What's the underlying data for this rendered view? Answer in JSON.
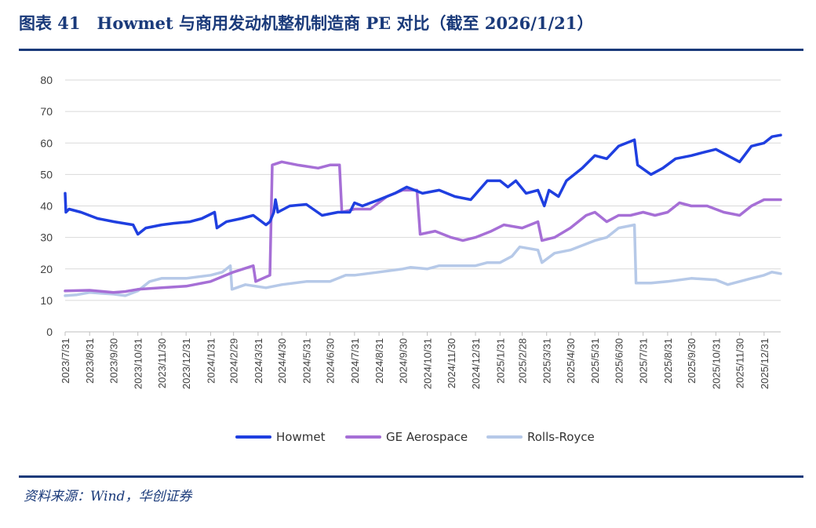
{
  "title": "图表 41　Howmet 与商用发动机整机制造商 PE 对比（截至 2026/1/21）",
  "source": "资料来源：Wind，华创证券",
  "colors": {
    "howmet": "#1f3fe0",
    "ge": "#a66fd6",
    "rr": "#b6c9e8",
    "title": "#1a3a7a"
  },
  "chart_data": {
    "type": "line",
    "title": "",
    "xlabel": "",
    "ylabel": "",
    "ylim": [
      0,
      80
    ],
    "yticks": [
      0,
      10,
      20,
      30,
      40,
      50,
      60,
      70,
      80
    ],
    "x_range": [
      "2023-07-31",
      "2026-01-21"
    ],
    "x_tick_labels": [
      "2023/7/31",
      "2023/8/31",
      "2023/9/30",
      "2023/10/31",
      "2023/11/30",
      "2023/12/31",
      "2024/1/31",
      "2024/2/29",
      "2024/3/31",
      "2024/4/30",
      "2024/5/31",
      "2024/6/30",
      "2024/7/31",
      "2024/8/31",
      "2024/9/30",
      "2024/10/31",
      "2024/11/30",
      "2024/12/31",
      "2025/1/31",
      "2025/2/28",
      "2025/3/31",
      "2025/4/30",
      "2025/5/31",
      "2025/6/30",
      "2025/7/31",
      "2025/8/31",
      "2025/9/30",
      "2025/10/31",
      "2025/11/30",
      "2025/12/31"
    ],
    "grid": true,
    "legend_position": "bottom",
    "series": [
      {
        "name": "Howmet",
        "color": "#1f3fe0",
        "points": [
          [
            "2023-07-31",
            44
          ],
          [
            "2023-08-01",
            38
          ],
          [
            "2023-08-05",
            39
          ],
          [
            "2023-08-20",
            38
          ],
          [
            "2023-09-10",
            36
          ],
          [
            "2023-10-01",
            35
          ],
          [
            "2023-10-25",
            34
          ],
          [
            "2023-10-31",
            31
          ],
          [
            "2023-11-10",
            33
          ],
          [
            "2023-11-30",
            34
          ],
          [
            "2023-12-15",
            34.5
          ],
          [
            "2024-01-05",
            35
          ],
          [
            "2024-01-20",
            36
          ],
          [
            "2024-02-05",
            38
          ],
          [
            "2024-02-08",
            33
          ],
          [
            "2024-02-20",
            35
          ],
          [
            "2024-03-10",
            36
          ],
          [
            "2024-03-25",
            37
          ],
          [
            "2024-04-10",
            34
          ],
          [
            "2024-04-15",
            35
          ],
          [
            "2024-04-20",
            38
          ],
          [
            "2024-04-22",
            42
          ],
          [
            "2024-04-25",
            38
          ],
          [
            "2024-05-10",
            40
          ],
          [
            "2024-05-31",
            40.5
          ],
          [
            "2024-06-20",
            37
          ],
          [
            "2024-07-10",
            38
          ],
          [
            "2024-07-25",
            38
          ],
          [
            "2024-07-31",
            41
          ],
          [
            "2024-08-10",
            40
          ],
          [
            "2024-08-31",
            42
          ],
          [
            "2024-09-20",
            44
          ],
          [
            "2024-10-05",
            46
          ],
          [
            "2024-10-25",
            44
          ],
          [
            "2024-11-15",
            45
          ],
          [
            "2024-12-05",
            43
          ],
          [
            "2024-12-25",
            42
          ],
          [
            "2025-01-15",
            48
          ],
          [
            "2025-01-31",
            48
          ],
          [
            "2025-02-10",
            46
          ],
          [
            "2025-02-20",
            48
          ],
          [
            "2025-03-05",
            44
          ],
          [
            "2025-03-20",
            45
          ],
          [
            "2025-03-28",
            40
          ],
          [
            "2025-04-03",
            45
          ],
          [
            "2025-04-15",
            43
          ],
          [
            "2025-04-25",
            48
          ],
          [
            "2025-05-15",
            52
          ],
          [
            "2025-05-31",
            56
          ],
          [
            "2025-06-15",
            55
          ],
          [
            "2025-06-30",
            59
          ],
          [
            "2025-07-10",
            60
          ],
          [
            "2025-07-20",
            61
          ],
          [
            "2025-07-24",
            53
          ],
          [
            "2025-08-10",
            50
          ],
          [
            "2025-08-25",
            52
          ],
          [
            "2025-09-10",
            55
          ],
          [
            "2025-09-30",
            56
          ],
          [
            "2025-10-15",
            57
          ],
          [
            "2025-10-31",
            58
          ],
          [
            "2025-11-15",
            56
          ],
          [
            "2025-11-30",
            54
          ],
          [
            "2025-12-15",
            59
          ],
          [
            "2025-12-31",
            60
          ],
          [
            "2026-01-10",
            62
          ],
          [
            "2026-01-21",
            62.5
          ]
        ]
      },
      {
        "name": "GE Aerospace",
        "color": "#a66fd6",
        "points": [
          [
            "2023-07-31",
            13
          ],
          [
            "2023-08-31",
            13.2
          ],
          [
            "2023-09-30",
            12.5
          ],
          [
            "2023-10-15",
            12.8
          ],
          [
            "2023-10-31",
            13.5
          ],
          [
            "2023-11-30",
            14
          ],
          [
            "2023-12-31",
            14.5
          ],
          [
            "2024-01-31",
            16
          ],
          [
            "2024-02-29",
            19
          ],
          [
            "2024-03-25",
            21
          ],
          [
            "2024-03-28",
            16
          ],
          [
            "2024-04-15",
            18
          ],
          [
            "2024-04-18",
            53
          ],
          [
            "2024-04-30",
            54
          ],
          [
            "2024-05-20",
            53
          ],
          [
            "2024-06-15",
            52
          ],
          [
            "2024-06-30",
            53
          ],
          [
            "2024-07-12",
            53
          ],
          [
            "2024-07-15",
            38
          ],
          [
            "2024-07-31",
            39
          ],
          [
            "2024-08-20",
            39
          ],
          [
            "2024-09-10",
            43
          ],
          [
            "2024-09-30",
            45
          ],
          [
            "2024-10-18",
            45
          ],
          [
            "2024-10-22",
            31
          ],
          [
            "2024-11-10",
            32
          ],
          [
            "2024-11-30",
            30
          ],
          [
            "2024-12-15",
            29
          ],
          [
            "2024-12-31",
            30
          ],
          [
            "2025-01-20",
            32
          ],
          [
            "2025-02-05",
            34
          ],
          [
            "2025-02-28",
            33
          ],
          [
            "2025-03-20",
            35
          ],
          [
            "2025-03-25",
            29
          ],
          [
            "2025-04-10",
            30
          ],
          [
            "2025-04-30",
            33
          ],
          [
            "2025-05-20",
            37
          ],
          [
            "2025-05-31",
            38
          ],
          [
            "2025-06-15",
            35
          ],
          [
            "2025-06-30",
            37
          ],
          [
            "2025-07-15",
            37
          ],
          [
            "2025-07-31",
            38
          ],
          [
            "2025-08-15",
            37
          ],
          [
            "2025-08-31",
            38
          ],
          [
            "2025-09-15",
            41
          ],
          [
            "2025-09-30",
            40
          ],
          [
            "2025-10-20",
            40
          ],
          [
            "2025-11-10",
            38
          ],
          [
            "2025-11-30",
            37
          ],
          [
            "2025-12-15",
            40
          ],
          [
            "2025-12-31",
            42
          ],
          [
            "2026-01-21",
            42
          ]
        ]
      },
      {
        "name": "Rolls-Royce",
        "color": "#b6c9e8",
        "points": [
          [
            "2023-07-31",
            11.5
          ],
          [
            "2023-08-15",
            11.8
          ],
          [
            "2023-08-31",
            12.5
          ],
          [
            "2023-09-30",
            12
          ],
          [
            "2023-10-15",
            11.5
          ],
          [
            "2023-10-31",
            13
          ],
          [
            "2023-11-15",
            16
          ],
          [
            "2023-11-30",
            17
          ],
          [
            "2023-12-31",
            17
          ],
          [
            "2024-01-31",
            18
          ],
          [
            "2024-02-15",
            19
          ],
          [
            "2024-02-25",
            21
          ],
          [
            "2024-02-27",
            13.5
          ],
          [
            "2024-03-15",
            15
          ],
          [
            "2024-04-10",
            14
          ],
          [
            "2024-04-30",
            15
          ],
          [
            "2024-05-31",
            16
          ],
          [
            "2024-06-30",
            16
          ],
          [
            "2024-07-20",
            18
          ],
          [
            "2024-07-31",
            18
          ],
          [
            "2024-08-31",
            19
          ],
          [
            "2024-09-30",
            20
          ],
          [
            "2024-10-10",
            20.5
          ],
          [
            "2024-10-31",
            20
          ],
          [
            "2024-11-15",
            21
          ],
          [
            "2024-11-30",
            21
          ],
          [
            "2024-12-31",
            21
          ],
          [
            "2025-01-15",
            22
          ],
          [
            "2025-01-31",
            22
          ],
          [
            "2025-02-15",
            24
          ],
          [
            "2025-02-25",
            27
          ],
          [
            "2025-03-20",
            26
          ],
          [
            "2025-03-25",
            22
          ],
          [
            "2025-04-10",
            25
          ],
          [
            "2025-04-30",
            26
          ],
          [
            "2025-05-31",
            29
          ],
          [
            "2025-06-15",
            30
          ],
          [
            "2025-06-30",
            33
          ],
          [
            "2025-07-20",
            34
          ],
          [
            "2025-07-22",
            15.5
          ],
          [
            "2025-08-10",
            15.5
          ],
          [
            "2025-08-31",
            16
          ],
          [
            "2025-09-30",
            17
          ],
          [
            "2025-10-31",
            16.5
          ],
          [
            "2025-11-15",
            15
          ],
          [
            "2025-11-30",
            16
          ],
          [
            "2025-12-15",
            17
          ],
          [
            "2025-12-31",
            18
          ],
          [
            "2026-01-10",
            19
          ],
          [
            "2026-01-21",
            18.5
          ]
        ]
      }
    ]
  }
}
